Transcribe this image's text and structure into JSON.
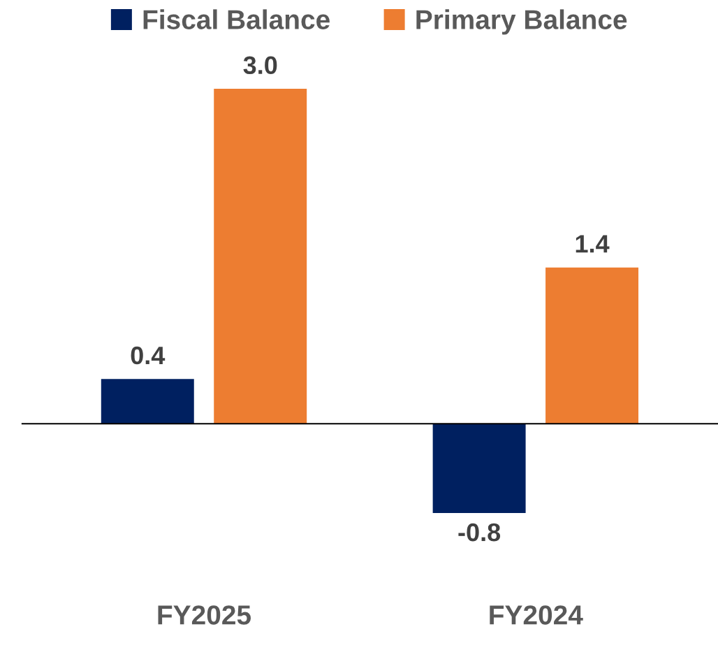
{
  "chart_data": {
    "type": "bar",
    "categories": [
      "FY2025",
      "FY2024"
    ],
    "series": [
      {
        "name": "Fiscal Balance",
        "color": "#002060",
        "values": [
          0.4,
          -0.8
        ],
        "value_labels": [
          "0.4",
          "-0.8"
        ]
      },
      {
        "name": "Primary Balance",
        "color": "#ed7d31",
        "values": [
          3.0,
          1.4
        ],
        "value_labels": [
          "3.0",
          "1.4"
        ]
      }
    ],
    "legend": "top",
    "grid": false
  }
}
